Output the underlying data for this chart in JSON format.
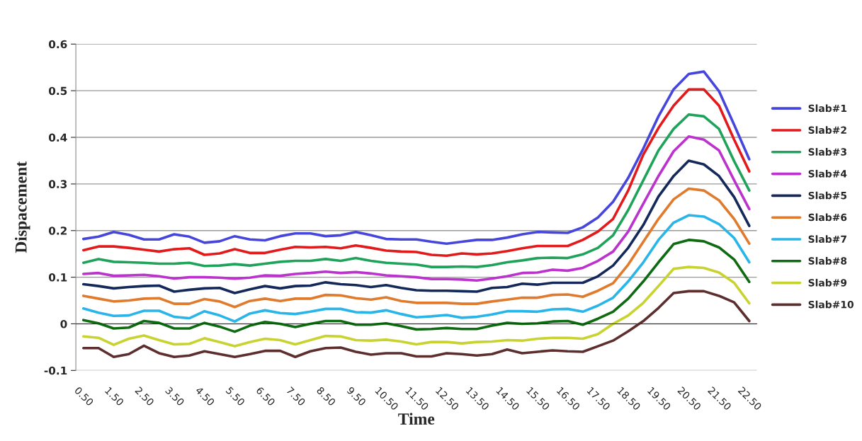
{
  "chart_data": {
    "type": "line",
    "xlabel": "Time",
    "ylabel": "Dispacement",
    "categories": [
      "0.50",
      null,
      "1.50",
      null,
      "2.50",
      null,
      "3.50",
      null,
      "4.50",
      null,
      "5.50",
      null,
      "6.50",
      null,
      "7.50",
      null,
      "8.50",
      null,
      "9.50",
      null,
      "10.50",
      null,
      "11.50",
      null,
      "12.50",
      null,
      "13.50",
      null,
      "14.50",
      null,
      "15.50",
      null,
      "16.50",
      null,
      "17.50",
      null,
      "18.50",
      null,
      "19.50",
      null,
      "20.50",
      null,
      "21.50",
      null,
      "22.50"
    ],
    "ylim": [
      -0.1,
      0.6
    ],
    "yticks": [
      -0.1,
      0,
      0.1,
      0.2,
      0.3,
      0.4,
      0.5,
      0.6
    ],
    "grid": "y",
    "legend": "right",
    "series": [
      {
        "name": "Slab#1",
        "color": "#4646dc",
        "values": [
          0.182,
          0.187,
          0.197,
          0.191,
          0.181,
          0.181,
          0.192,
          0.187,
          0.174,
          0.177,
          0.188,
          0.181,
          0.179,
          0.188,
          0.194,
          0.194,
          0.188,
          0.19,
          0.197,
          0.19,
          0.182,
          0.181,
          0.181,
          0.176,
          0.172,
          0.176,
          0.18,
          0.18,
          0.185,
          0.192,
          0.197,
          0.196,
          0.195,
          0.207,
          0.228,
          0.262,
          0.313,
          0.376,
          0.445,
          0.503,
          0.536,
          0.541,
          0.499,
          0.427,
          0.353
        ]
      },
      {
        "name": "Slab#2",
        "color": "#e31a1c",
        "values": [
          0.158,
          0.166,
          0.166,
          0.163,
          0.159,
          0.155,
          0.16,
          0.162,
          0.148,
          0.151,
          0.16,
          0.152,
          0.152,
          0.159,
          0.165,
          0.164,
          0.165,
          0.162,
          0.168,
          0.163,
          0.157,
          0.155,
          0.154,
          0.148,
          0.146,
          0.151,
          0.149,
          0.151,
          0.156,
          0.162,
          0.167,
          0.167,
          0.167,
          0.18,
          0.198,
          0.225,
          0.286,
          0.363,
          0.42,
          0.468,
          0.503,
          0.503,
          0.468,
          0.395,
          0.327
        ]
      },
      {
        "name": "Slab#3",
        "color": "#1fa35b",
        "values": [
          0.131,
          0.139,
          0.133,
          0.132,
          0.131,
          0.129,
          0.129,
          0.131,
          0.124,
          0.125,
          0.128,
          0.125,
          0.129,
          0.133,
          0.135,
          0.135,
          0.139,
          0.135,
          0.141,
          0.135,
          0.131,
          0.129,
          0.127,
          0.122,
          0.122,
          0.123,
          0.122,
          0.126,
          0.132,
          0.136,
          0.141,
          0.142,
          0.141,
          0.149,
          0.163,
          0.19,
          0.244,
          0.308,
          0.372,
          0.418,
          0.449,
          0.445,
          0.418,
          0.349,
          0.286
        ]
      },
      {
        "name": "Slab#4",
        "color": "#bb33cc",
        "values": [
          0.107,
          0.109,
          0.103,
          0.104,
          0.105,
          0.102,
          0.097,
          0.1,
          0.1,
          0.099,
          0.097,
          0.099,
          0.104,
          0.103,
          0.107,
          0.109,
          0.112,
          0.109,
          0.111,
          0.108,
          0.104,
          0.102,
          0.1,
          0.096,
          0.096,
          0.095,
          0.093,
          0.097,
          0.102,
          0.109,
          0.11,
          0.116,
          0.114,
          0.12,
          0.135,
          0.155,
          0.198,
          0.258,
          0.317,
          0.37,
          0.402,
          0.395,
          0.372,
          0.308,
          0.246
        ]
      },
      {
        "name": "Slab#5",
        "color": "#14285a",
        "values": [
          0.085,
          0.081,
          0.076,
          0.079,
          0.081,
          0.082,
          0.069,
          0.073,
          0.076,
          0.077,
          0.066,
          0.074,
          0.081,
          0.076,
          0.081,
          0.082,
          0.089,
          0.085,
          0.083,
          0.079,
          0.083,
          0.077,
          0.072,
          0.071,
          0.071,
          0.07,
          0.069,
          0.077,
          0.079,
          0.086,
          0.084,
          0.088,
          0.088,
          0.088,
          0.102,
          0.125,
          0.163,
          0.212,
          0.273,
          0.317,
          0.35,
          0.342,
          0.317,
          0.272,
          0.21
        ]
      },
      {
        "name": "Slab#6",
        "color": "#e07b2e",
        "values": [
          0.06,
          0.054,
          0.048,
          0.05,
          0.054,
          0.055,
          0.043,
          0.043,
          0.053,
          0.048,
          0.036,
          0.049,
          0.054,
          0.049,
          0.054,
          0.054,
          0.062,
          0.061,
          0.055,
          0.052,
          0.057,
          0.049,
          0.045,
          0.045,
          0.045,
          0.043,
          0.043,
          0.048,
          0.052,
          0.056,
          0.056,
          0.062,
          0.063,
          0.058,
          0.071,
          0.087,
          0.127,
          0.176,
          0.225,
          0.267,
          0.29,
          0.286,
          0.265,
          0.225,
          0.172
        ]
      },
      {
        "name": "Slab#7",
        "color": "#29b5e8",
        "values": [
          0.033,
          0.024,
          0.017,
          0.018,
          0.028,
          0.028,
          0.015,
          0.012,
          0.027,
          0.018,
          0.005,
          0.022,
          0.029,
          0.023,
          0.021,
          0.026,
          0.032,
          0.032,
          0.025,
          0.024,
          0.029,
          0.021,
          0.014,
          0.016,
          0.019,
          0.013,
          0.015,
          0.02,
          0.027,
          0.027,
          0.026,
          0.031,
          0.032,
          0.026,
          0.039,
          0.056,
          0.091,
          0.132,
          0.18,
          0.217,
          0.233,
          0.23,
          0.214,
          0.184,
          0.132
        ]
      },
      {
        "name": "Slab#8",
        "color": "#0e6b12",
        "values": [
          0.008,
          0.001,
          -0.01,
          -0.008,
          0.006,
          0.002,
          -0.01,
          -0.01,
          0.002,
          -0.006,
          -0.017,
          -0.004,
          0.004,
          0.0,
          -0.007,
          0.0,
          0.006,
          0.006,
          -0.002,
          -0.002,
          0.001,
          -0.005,
          -0.012,
          -0.011,
          -0.009,
          -0.011,
          -0.011,
          -0.004,
          0.002,
          0.0,
          0.001,
          0.005,
          0.006,
          -0.002,
          0.011,
          0.026,
          0.054,
          0.091,
          0.132,
          0.171,
          0.18,
          0.177,
          0.164,
          0.138,
          0.09
        ]
      },
      {
        "name": "Slab#9",
        "color": "#c8d330",
        "values": [
          -0.027,
          -0.03,
          -0.045,
          -0.032,
          -0.025,
          -0.035,
          -0.044,
          -0.043,
          -0.031,
          -0.039,
          -0.048,
          -0.039,
          -0.032,
          -0.035,
          -0.044,
          -0.035,
          -0.026,
          -0.027,
          -0.035,
          -0.036,
          -0.034,
          -0.038,
          -0.044,
          -0.039,
          -0.039,
          -0.042,
          -0.039,
          -0.038,
          -0.035,
          -0.036,
          -0.032,
          -0.03,
          -0.03,
          -0.032,
          -0.022,
          0.0,
          0.018,
          0.045,
          0.081,
          0.118,
          0.122,
          0.12,
          0.11,
          0.088,
          0.044
        ]
      },
      {
        "name": "Slab#10",
        "color": "#5c2e2e",
        "values": [
          -0.052,
          -0.052,
          -0.071,
          -0.065,
          -0.047,
          -0.063,
          -0.071,
          -0.068,
          -0.059,
          -0.065,
          -0.071,
          -0.065,
          -0.058,
          -0.058,
          -0.071,
          -0.059,
          -0.052,
          -0.051,
          -0.06,
          -0.066,
          -0.063,
          -0.063,
          -0.07,
          -0.07,
          -0.063,
          -0.065,
          -0.068,
          -0.065,
          -0.055,
          -0.063,
          -0.06,
          -0.057,
          -0.059,
          -0.06,
          -0.048,
          -0.036,
          -0.016,
          0.006,
          0.034,
          0.066,
          0.07,
          0.07,
          0.06,
          0.046,
          0.006
        ]
      }
    ]
  }
}
